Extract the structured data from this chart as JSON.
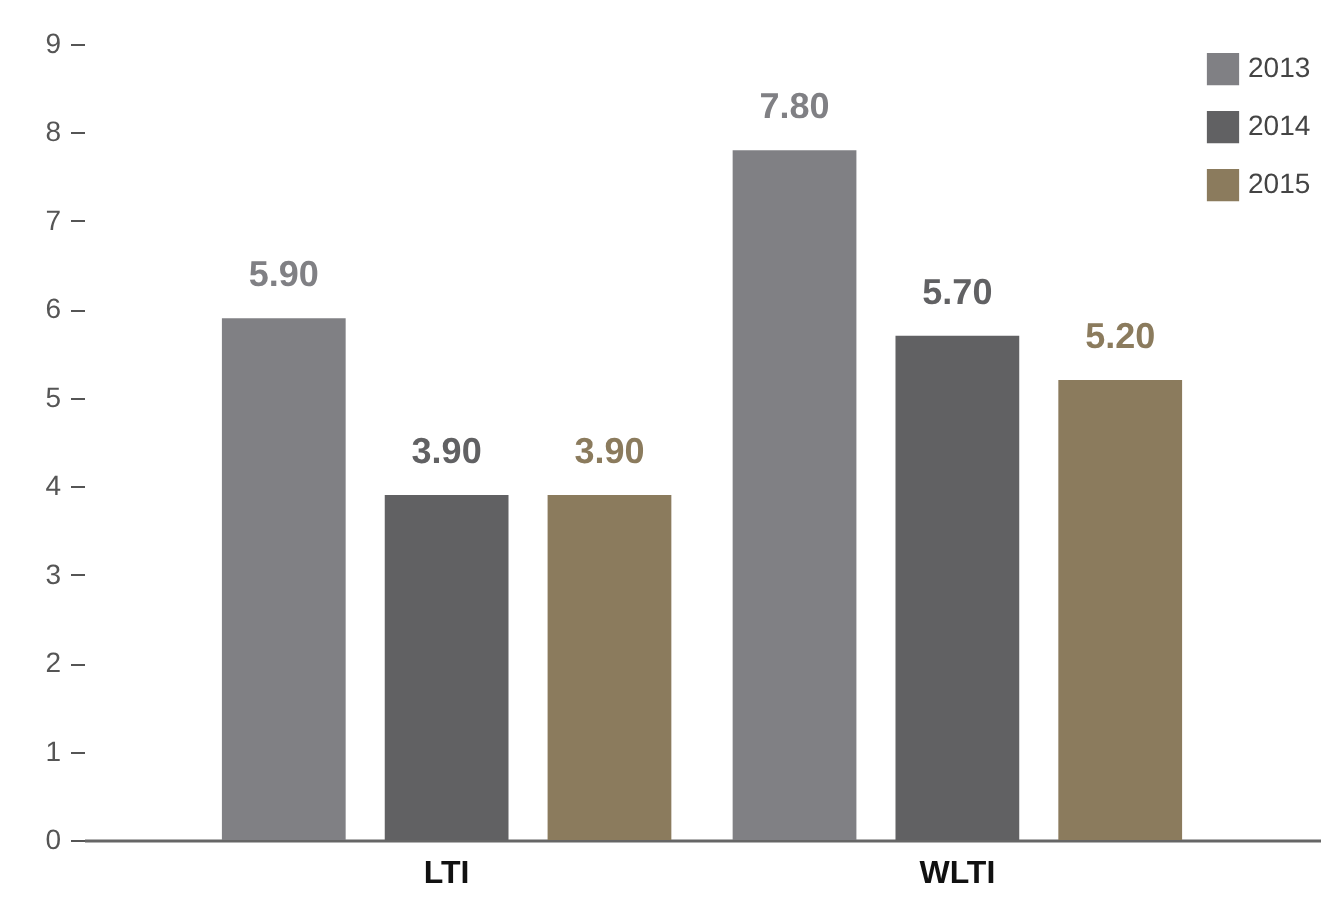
{
  "chart_data": {
    "type": "bar",
    "categories": [
      "LTI",
      "WLTI"
    ],
    "series": [
      {
        "name": "2013",
        "color": "#808084",
        "values": [
          5.9,
          7.8
        ],
        "value_labels": [
          "5.90",
          "7.80"
        ]
      },
      {
        "name": "2014",
        "color": "#616163",
        "values": [
          3.9,
          5.7
        ],
        "value_labels": [
          "3.90",
          "5.70"
        ]
      },
      {
        "name": "2015",
        "color": "#8b7b5d",
        "values": [
          3.9,
          5.2
        ],
        "value_labels": [
          "3.90",
          "5.20"
        ]
      }
    ],
    "ylim": [
      0,
      9
    ],
    "yticks": [
      0,
      1,
      2,
      3,
      4,
      5,
      6,
      7,
      8,
      9
    ],
    "grid": false,
    "legend": "top right"
  }
}
